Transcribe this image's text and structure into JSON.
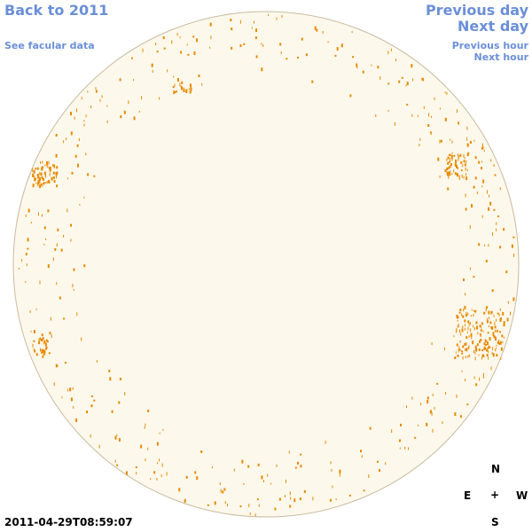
{
  "links": {
    "back": "Back to 2011",
    "facular": "See facular data",
    "prev_day": "Previous day",
    "next_day": "Next day",
    "prev_hour": "Previous hour",
    "next_hour": "Next hour"
  },
  "timestamp": "2011-04-29T08:59:07",
  "compass": {
    "north": "N",
    "east": "E",
    "center": "+",
    "west": "W",
    "south": "S"
  }
}
